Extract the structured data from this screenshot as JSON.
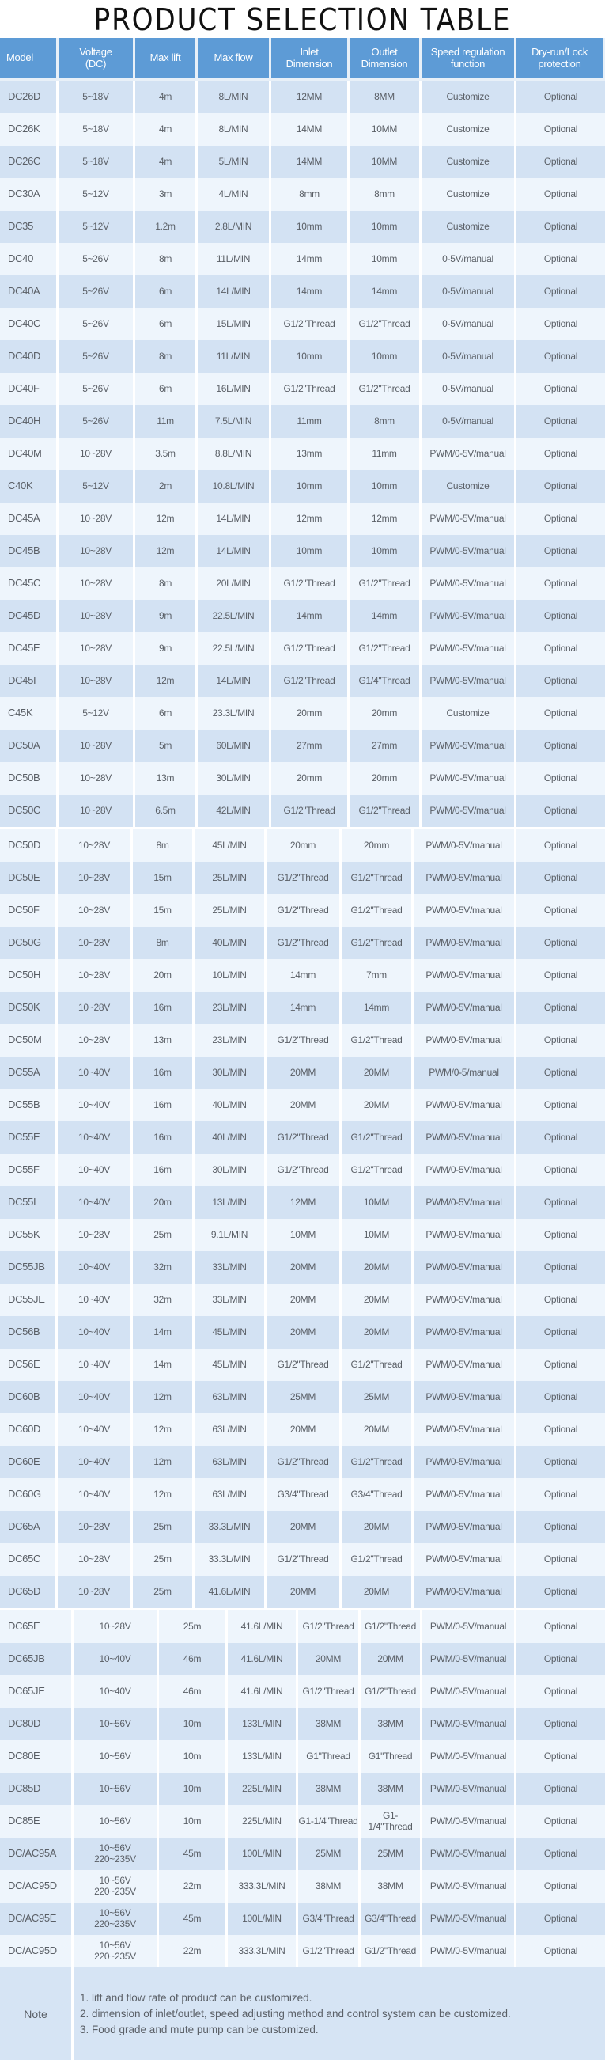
{
  "title": "PRODUCT SELECTION TABLE",
  "colors": {
    "header_bg": "#5d9bd6",
    "row_dark": "#d3e2f3",
    "row_light": "#eef5fc",
    "text": "#5a5f66"
  },
  "columns": [
    "Model",
    "Voltage\n(DC)",
    "Max lift",
    "Max flow",
    "Inlet\nDimension",
    "Outlet\nDimension",
    "Speed regulation\nfunction",
    "Dry-run/Lock\nprotection"
  ],
  "rows": [
    [
      "DC26D",
      "5~18V",
      "4m",
      "8L/MIN",
      "12MM",
      "8MM",
      "Customize",
      "Optional"
    ],
    [
      "DC26K",
      "5~18V",
      "4m",
      "8L/MIN",
      "14MM",
      "10MM",
      "Customize",
      "Optional"
    ],
    [
      "DC26C",
      "5~18V",
      "4m",
      "5L/MIN",
      "14MM",
      "10MM",
      "Customize",
      "Optional"
    ],
    [
      "DC30A",
      "5~12V",
      "3m",
      "4L/MIN",
      "8mm",
      "8mm",
      "Customize",
      "Optional"
    ],
    [
      "DC35",
      "5~12V",
      "1.2m",
      "2.8L/MIN",
      "10mm",
      "10mm",
      "Customize",
      "Optional"
    ],
    [
      "DC40",
      "5~26V",
      "8m",
      "11L/MIN",
      "14mm",
      "10mm",
      "0-5V/manual",
      "Optional"
    ],
    [
      "DC40A",
      "5~26V",
      "6m",
      "14L/MIN",
      "14mm",
      "14mm",
      "0-5V/manual",
      "Optional"
    ],
    [
      "DC40C",
      "5~26V",
      "6m",
      "15L/MIN",
      "G1/2\"Thread",
      "G1/2\"Thread",
      "0-5V/manual",
      "Optional"
    ],
    [
      "DC40D",
      "5~26V",
      "8m",
      "11L/MIN",
      "10mm",
      "10mm",
      "0-5V/manual",
      "Optional"
    ],
    [
      "DC40F",
      "5~26V",
      "6m",
      "16L/MIN",
      "G1/2\"Thread",
      "G1/2\"Thread",
      "0-5V/manual",
      "Optional"
    ],
    [
      "DC40H",
      "5~26V",
      "11m",
      "7.5L/MIN",
      "11mm",
      "8mm",
      "0-5V/manual",
      "Optional"
    ],
    [
      "DC40M",
      "10~28V",
      "3.5m",
      "8.8L/MIN",
      "13mm",
      "11mm",
      "PWM/0-5V/manual",
      "Optional"
    ],
    [
      "C40K",
      "5~12V",
      "2m",
      "10.8L/MIN",
      "10mm",
      "10mm",
      "Customize",
      "Optional"
    ],
    [
      "DC45A",
      "10~28V",
      "12m",
      "14L/MIN",
      "12mm",
      "12mm",
      "PWM/0-5V/manual",
      "Optional"
    ],
    [
      "DC45B",
      "10~28V",
      "12m",
      "14L/MIN",
      "10mm",
      "10mm",
      "PWM/0-5V/manual",
      "Optional"
    ],
    [
      "DC45C",
      "10~28V",
      "8m",
      "20L/MIN",
      "G1/2\"Thread",
      "G1/2\"Thread",
      "PWM/0-5V/manual",
      "Optional"
    ],
    [
      "DC45D",
      "10~28V",
      "9m",
      "22.5L/MIN",
      "14mm",
      "14mm",
      "PWM/0-5V/manual",
      "Optional"
    ],
    [
      "DC45E",
      "10~28V",
      "9m",
      "22.5L/MIN",
      "G1/2\"Thread",
      "G1/2\"Thread",
      "PWM/0-5V/manual",
      "Optional"
    ],
    [
      "DC45I",
      "10~28V",
      "12m",
      "14L/MIN",
      "G1/2\"Thread",
      "G1/4\"Thread",
      "PWM/0-5V/manual",
      "Optional"
    ],
    [
      "C45K",
      "5~12V",
      "6m",
      "23.3L/MIN",
      "20mm",
      "20mm",
      "Customize",
      "Optional"
    ],
    [
      "DC50A",
      "10~28V",
      "5m",
      "60L/MIN",
      "27mm",
      "27mm",
      "PWM/0-5V/manual",
      "Optional"
    ],
    [
      "DC50B",
      "10~28V",
      "13m",
      "30L/MIN",
      "20mm",
      "20mm",
      "PWM/0-5V/manual",
      "Optional"
    ],
    [
      "DC50C",
      "10~28V",
      "6.5m",
      "42L/MIN",
      "G1/2\"Thread",
      "G1/2\"Thread",
      "PWM/0-5V/manual",
      "Optional"
    ],
    [
      "DC50D",
      "10~28V",
      "8m",
      "45L/MIN",
      "20mm",
      "20mm",
      "PWM/0-5V/manual",
      "Optional"
    ],
    [
      "DC50E",
      "10~28V",
      "15m",
      "25L/MIN",
      "G1/2\"Thread",
      "G1/2\"Thread",
      "PWM/0-5V/manual",
      "Optional"
    ],
    [
      "DC50F",
      "10~28V",
      "15m",
      "25L/MIN",
      "G1/2\"Thread",
      "G1/2\"Thread",
      "PWM/0-5V/manual",
      "Optional"
    ],
    [
      "DC50G",
      "10~28V",
      "8m",
      "40L/MIN",
      "G1/2\"Thread",
      "G1/2\"Thread",
      "PWM/0-5V/manual",
      "Optional"
    ],
    [
      "DC50H",
      "10~28V",
      "20m",
      "10L/MIN",
      "14mm",
      "7mm",
      "PWM/0-5V/manual",
      "Optional"
    ],
    [
      "DC50K",
      "10~28V",
      "16m",
      "23L/MIN",
      "14mm",
      "14mm",
      "PWM/0-5V/manual",
      "Optional"
    ],
    [
      "DC50M",
      "10~28V",
      "13m",
      "23L/MIN",
      "G1/2\"Thread",
      "G1/2\"Thread",
      "PWM/0-5V/manual",
      "Optional"
    ],
    [
      "DC55A",
      "10~40V",
      "16m",
      "30L/MIN",
      "20MM",
      "20MM",
      "PWM/0-5/manual",
      "Optional"
    ],
    [
      "DC55B",
      "10~40V",
      "16m",
      "40L/MIN",
      "20MM",
      "20MM",
      "PWM/0-5V/manual",
      "Optional"
    ],
    [
      "DC55E",
      "10~40V",
      "16m",
      "40L/MIN",
      "G1/2\"Thread",
      "G1/2\"Thread",
      "PWM/0-5V/manual",
      "Optional"
    ],
    [
      "DC55F",
      "10~40V",
      "16m",
      "30L/MIN",
      "G1/2\"Thread",
      "G1/2\"Thread",
      "PWM/0-5V/manual",
      "Optional"
    ],
    [
      "DC55I",
      "10~40V",
      "20m",
      "13L/MIN",
      "12MM",
      "10MM",
      "PWM/0-5V/manual",
      "Optional"
    ],
    [
      "DC55K",
      "10~28V",
      "25m",
      "9.1L/MIN",
      "10MM",
      "10MM",
      "PWM/0-5V/manual",
      "Optional"
    ],
    [
      "DC55JB",
      "10~40V",
      "32m",
      "33L/MIN",
      "20MM",
      "20MM",
      "PWM/0-5V/manual",
      "Optional"
    ],
    [
      "DC55JE",
      "10~40V",
      "32m",
      "33L/MIN",
      "20MM",
      "20MM",
      "PWM/0-5V/manual",
      "Optional"
    ],
    [
      "DC56B",
      "10~40V",
      "14m",
      "45L/MIN",
      "20MM",
      "20MM",
      "PWM/0-5V/manual",
      "Optional"
    ],
    [
      "DC56E",
      "10~40V",
      "14m",
      "45L/MIN",
      "G1/2\"Thread",
      "G1/2\"Thread",
      "PWM/0-5V/manual",
      "Optional"
    ],
    [
      "DC60B",
      "10~40V",
      "12m",
      "63L/MIN",
      "25MM",
      "25MM",
      "PWM/0-5V/manual",
      "Optional"
    ],
    [
      "DC60D",
      "10~40V",
      "12m",
      "63L/MIN",
      "20MM",
      "20MM",
      "PWM/0-5V/manual",
      "Optional"
    ],
    [
      "DC60E",
      "10~40V",
      "12m",
      "63L/MIN",
      "G1/2\"Thread",
      "G1/2\"Thread",
      "PWM/0-5V/manual",
      "Optional"
    ],
    [
      "DC60G",
      "10~40V",
      "12m",
      "63L/MIN",
      "G3/4\"Thread",
      "G3/4\"Thread",
      "PWM/0-5V/manual",
      "Optional"
    ],
    [
      "DC65A",
      "10~28V",
      "25m",
      "33.3L/MIN",
      "20MM",
      "20MM",
      "PWM/0-5V/manual",
      "Optional"
    ],
    [
      "DC65C",
      "10~28V",
      "25m",
      "33.3L/MIN",
      "G1/2\"Thread",
      "G1/2\"Thread",
      "PWM/0-5V/manual",
      "Optional"
    ],
    [
      "DC65D",
      "10~28V",
      "25m",
      "41.6L/MIN",
      "20MM",
      "20MM",
      "PWM/0-5V/manual",
      "Optional"
    ],
    [
      "DC65E",
      "10~28V",
      "25m",
      "41.6L/MIN",
      "G1/2\"Thread",
      "G1/2\"Thread",
      "PWM/0-5V/manual",
      "Optional"
    ],
    [
      "DC65JB",
      "10~40V",
      "46m",
      "41.6L/MIN",
      "20MM",
      "20MM",
      "PWM/0-5V/manual",
      "Optional"
    ],
    [
      "DC65JE",
      "10~40V",
      "46m",
      "41.6L/MIN",
      "G1/2\"Thread",
      "G1/2\"Thread",
      "PWM/0-5V/manual",
      "Optional"
    ],
    [
      "DC80D",
      "10~56V",
      "10m",
      "133L/MIN",
      "38MM",
      "38MM",
      "PWM/0-5V/manual",
      "Optional"
    ],
    [
      "DC80E",
      "10~56V",
      "10m",
      "133L/MIN",
      "G1\"Thread",
      "G1\"Thread",
      "PWM/0-5V/manual",
      "Optional"
    ],
    [
      "DC85D",
      "10~56V",
      "10m",
      "225L/MIN",
      "38MM",
      "38MM",
      "PWM/0-5V/manual",
      "Optional"
    ],
    [
      "DC85E",
      "10~56V",
      "10m",
      "225L/MIN",
      "G1-1/4\"Thread",
      "G1-1/4\"Thread",
      "PWM/0-5V/manual",
      "Optional"
    ],
    [
      "DC/AC95A",
      "10~56V\n220~235V",
      "45m",
      "100L/MIN",
      "25MM",
      "25MM",
      "PWM/0-5V/manual",
      "Optional"
    ],
    [
      "DC/AC95D",
      "10~56V\n220~235V",
      "22m",
      "333.3L/MIN",
      "38MM",
      "38MM",
      "PWM/0-5V/manual",
      "Optional"
    ],
    [
      "DC/AC95E",
      "10~56V\n220~235V",
      "45m",
      "100L/MIN",
      "G3/4\"Thread",
      "G3/4\"Thread",
      "PWM/0-5V/manual",
      "Optional"
    ],
    [
      "DC/AC95D",
      "10~56V\n220~235V",
      "22m",
      "333.3L/MIN",
      "G1/2\"Thread",
      "G1/2\"Thread",
      "PWM/0-5V/manual",
      "Optional"
    ]
  ],
  "note": {
    "label": "Note",
    "lines": [
      "1. lift and flow rate of product can be customized.",
      "2. dimension of inlet/outlet, speed adjusting method and control system can be customized.",
      "3. Food grade and mute pump can be customized."
    ]
  }
}
